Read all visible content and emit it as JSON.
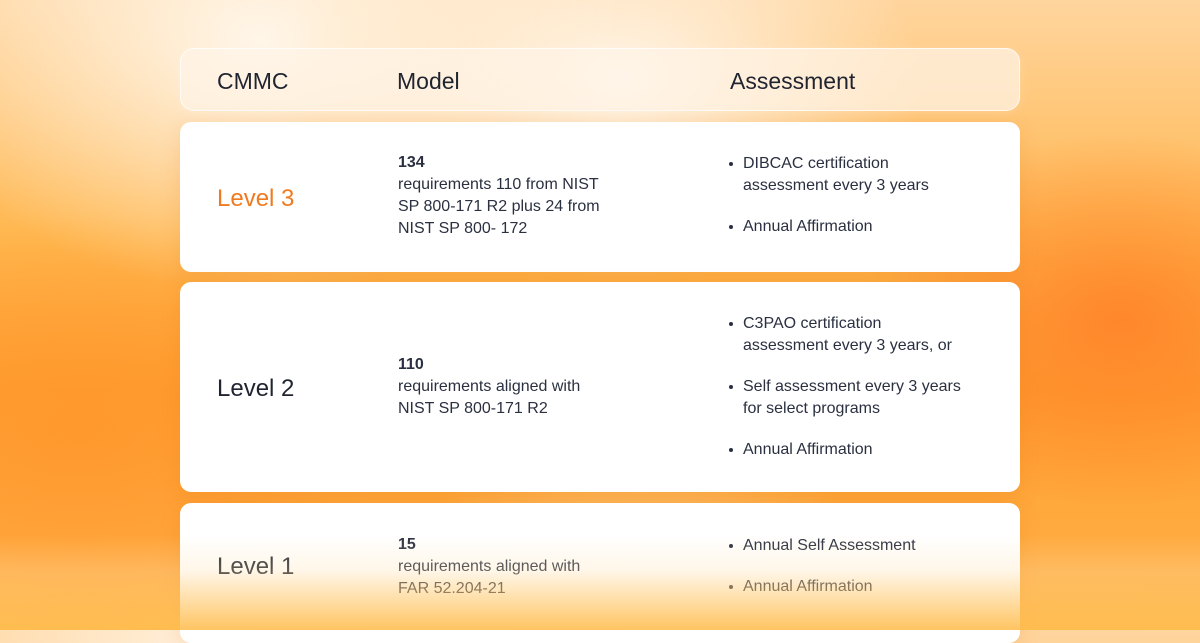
{
  "header": {
    "cmmc": "CMMC",
    "model": "Model",
    "assessment": "Assessment"
  },
  "rows": [
    {
      "level": "Level 3",
      "model_count": "134",
      "model_lines": [
        "requirements 110 from NIST",
        "SP 800-171 R2 plus 24 from",
        "NIST SP 800- 172"
      ],
      "assessment": [
        [
          "DIBCAC certification",
          "assessment every 3 years"
        ],
        [
          "Annual Affirmation"
        ]
      ]
    },
    {
      "level": "Level 2",
      "model_count": "110",
      "model_lines": [
        "requirements aligned with",
        "NIST SP 800-171 R2"
      ],
      "assessment": [
        [
          "C3PAO certification",
          "assessment every 3 years, or"
        ],
        [
          "Self assessment every 3 years",
          "for select programs"
        ],
        [
          "Annual Affirmation"
        ]
      ]
    },
    {
      "level": "Level 1",
      "model_count": "15",
      "model_lines": [
        "requirements aligned with",
        "FAR 52.204-21"
      ],
      "assessment": [
        [
          "Annual Self Assessment"
        ],
        [
          "Annual Affirmation"
        ]
      ]
    }
  ],
  "colors": {
    "level_3_accent": "#f07a1f",
    "background_orange": "#ff9f2f",
    "card_white": "#ffffff"
  }
}
